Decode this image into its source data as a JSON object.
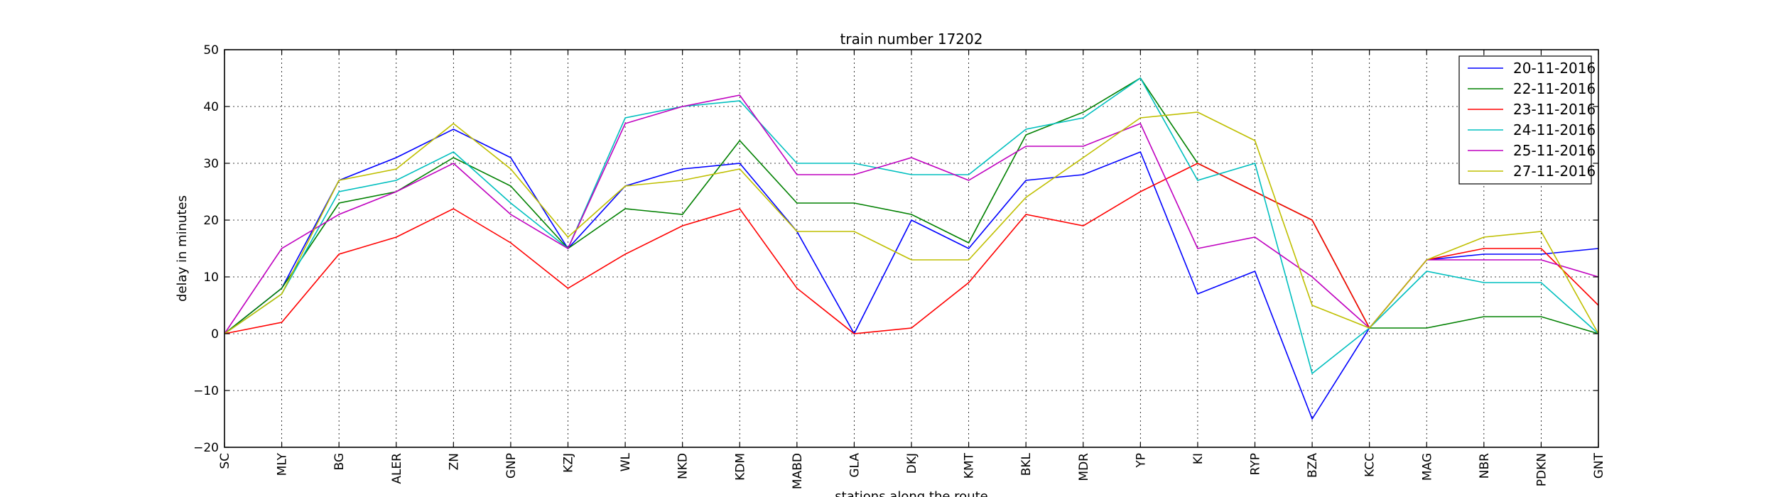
{
  "chart_data": {
    "type": "line",
    "title": "train number 17202",
    "xlabel": "stations along the route",
    "ylabel": "delay in minutes",
    "categories": [
      "SC",
      "MLY",
      "BG",
      "ALER",
      "ZN",
      "GNP",
      "KZJ",
      "WL",
      "NKD",
      "KDM",
      "MABD",
      "GLA",
      "DKJ",
      "KMT",
      "BKL",
      "MDR",
      "YP",
      "KI",
      "RYP",
      "BZA",
      "KCC",
      "MAG",
      "NBR",
      "PDKN",
      "GNT"
    ],
    "ylim": [
      -20,
      50
    ],
    "yticks": [
      "−20",
      "−10",
      "0",
      "10",
      "20",
      "30",
      "40",
      "50"
    ],
    "yticks_values": [
      -20,
      -10,
      0,
      10,
      20,
      30,
      40,
      50
    ],
    "grid": true,
    "legend_position": "top-right",
    "series": [
      {
        "name": "20-11-2016",
        "color": "#0000ff",
        "values": [
          0,
          8,
          27,
          31,
          36,
          31,
          15,
          26,
          29,
          30,
          18,
          0,
          20,
          15,
          27,
          28,
          32,
          7,
          11,
          -15,
          1,
          13,
          14,
          14,
          15
        ]
      },
      {
        "name": "22-11-2016",
        "color": "#008000",
        "values": [
          0,
          8,
          23,
          25,
          31,
          26,
          15,
          22,
          21,
          34,
          23,
          23,
          21,
          16,
          35,
          39,
          45,
          30,
          25,
          20,
          1,
          1,
          3,
          3,
          0
        ]
      },
      {
        "name": "23-11-2016",
        "color": "#ff0000",
        "values": [
          0,
          2,
          14,
          17,
          22,
          16,
          8,
          14,
          19,
          22,
          8,
          0,
          1,
          9,
          21,
          19,
          25,
          30,
          25,
          20,
          1,
          13,
          15,
          15,
          5
        ]
      },
      {
        "name": "24-11-2016",
        "color": "#00bfbf",
        "values": [
          0,
          7,
          25,
          27,
          32,
          23,
          15,
          38,
          40,
          41,
          30,
          30,
          28,
          28,
          36,
          38,
          45,
          27,
          30,
          -7,
          1,
          11,
          9,
          9,
          0
        ]
      },
      {
        "name": "25-11-2016",
        "color": "#bf00bf",
        "values": [
          0,
          15,
          21,
          25,
          30,
          21,
          15,
          37,
          40,
          42,
          28,
          28,
          31,
          27,
          33,
          33,
          37,
          15,
          17,
          10,
          1,
          13,
          13,
          13,
          10
        ]
      },
      {
        "name": "27-11-2016",
        "color": "#bfbf00",
        "values": [
          0,
          7,
          27,
          29,
          37,
          29,
          17,
          26,
          27,
          29,
          18,
          18,
          13,
          13,
          24,
          31,
          38,
          39,
          34,
          5,
          1,
          13,
          17,
          18,
          0
        ]
      }
    ]
  }
}
